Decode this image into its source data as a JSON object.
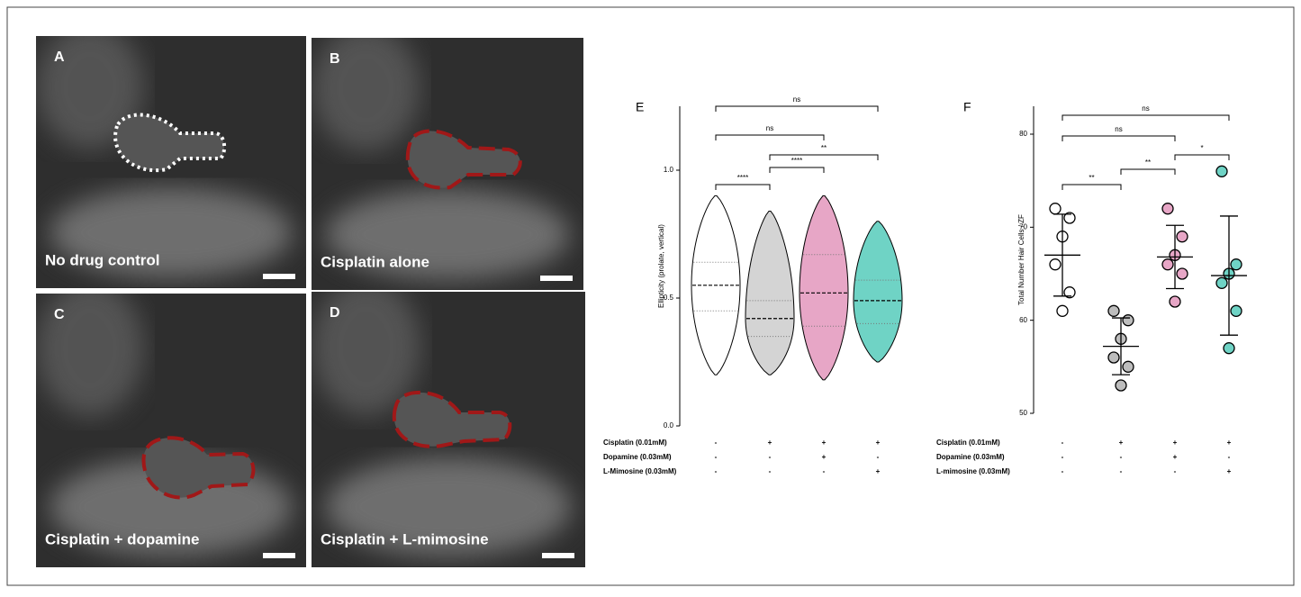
{
  "panels": [
    {
      "label": "A",
      "caption": "No drug control"
    },
    {
      "label": "B",
      "caption": "Cisplatin alone"
    },
    {
      "label": "C",
      "caption": "Cisplatin + dopamine"
    },
    {
      "label": "D",
      "caption": "Cisplatin + L-mimosine"
    }
  ],
  "chart_data": [
    {
      "type": "violin",
      "panel_label": "E",
      "y_label": "Ellipticity (prolate, vertical)",
      "ylim": [
        0,
        1.25
      ],
      "yticks": [
        {
          "value": 0,
          "label": "0.0"
        },
        0.5,
        {
          "value": 1,
          "label": "1.0"
        }
      ],
      "violins": [
        {
          "color": "#ffffff",
          "min": 0.2,
          "q1": 0.45,
          "median": 0.55,
          "q3": 0.64,
          "max": 0.9
        },
        {
          "color": "#d4d4d4",
          "min": 0.2,
          "q1": 0.35,
          "median": 0.42,
          "q3": 0.49,
          "max": 0.84
        },
        {
          "color": "#e7a6c6",
          "min": 0.18,
          "q1": 0.39,
          "median": 0.52,
          "q3": 0.67,
          "max": 0.9
        },
        {
          "color": "#6fd3c5",
          "min": 0.25,
          "q1": 0.4,
          "median": 0.49,
          "q3": 0.57,
          "max": 0.8
        }
      ],
      "annotations": [
        "ns",
        "ns",
        "****",
        "****",
        "**"
      ],
      "conditions": [
        {
          "label": "Cisplatin (0.01mM)",
          "values": [
            "-",
            "+",
            "+",
            "+"
          ]
        },
        {
          "label": "Dopamine (0.03mM)",
          "values": [
            "-",
            "-",
            "+",
            "-"
          ]
        },
        {
          "label": "L-Mimosine (0.03mM)",
          "values": [
            "-",
            "-",
            "-",
            "+"
          ]
        }
      ]
    },
    {
      "type": "dot",
      "panel_label": "F",
      "y_label": "Total Number Hair Cells / ZF",
      "ylim": [
        50,
        83
      ],
      "yticks": [
        50,
        60,
        70,
        80
      ],
      "groups": [
        {
          "color": "#ffffff",
          "values": [
            72,
            71,
            69,
            66,
            63,
            61
          ],
          "mean": 67,
          "sd": 4.4
        },
        {
          "color": "#bdbdbd",
          "values": [
            61,
            60,
            58,
            56,
            55,
            53
          ],
          "mean": 57.2,
          "sd": 3.05
        },
        {
          "color": "#e7a6c6",
          "values": [
            72,
            69,
            67,
            66,
            65,
            62
          ],
          "mean": 66.8,
          "sd": 3.4
        },
        {
          "color": "#6fd3c5",
          "values": [
            76,
            66,
            65,
            64,
            61,
            57
          ],
          "mean": 64.8,
          "sd": 6.4
        }
      ],
      "annotations": [
        "ns",
        "ns",
        "*",
        "**",
        "**"
      ],
      "conditions": [
        {
          "label": "Cisplatin (0.01mM)",
          "values": [
            "-",
            "+",
            "+",
            "+"
          ]
        },
        {
          "label": "Dopamine (0.03mM)",
          "values": [
            "-",
            "-",
            "+",
            "-"
          ]
        },
        {
          "label": "L-mimosine (0.03mM)",
          "values": [
            "-",
            "-",
            "-",
            "+"
          ]
        }
      ]
    }
  ]
}
